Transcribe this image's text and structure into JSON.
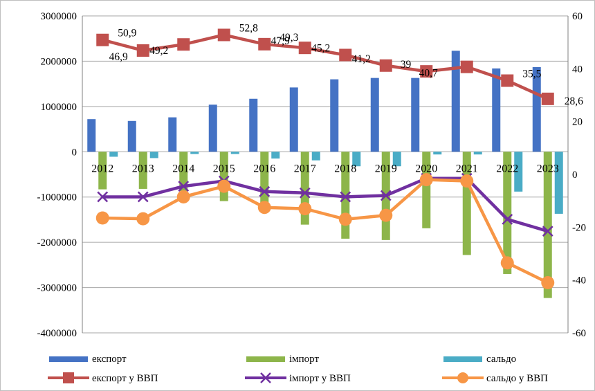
{
  "chart_data": {
    "type": "bar",
    "categories": [
      "2012",
      "2013",
      "2014",
      "2015",
      "2016",
      "2017",
      "2018",
      "2019",
      "2020",
      "2021",
      "2022",
      "2023"
    ],
    "left_axis": {
      "ylim": [
        -4000000,
        3000000
      ],
      "ticks": [
        3000000,
        2000000,
        1000000,
        0,
        -1000000,
        -2000000,
        -3000000,
        -4000000
      ],
      "tick_labels": [
        "3000000",
        "2000000",
        "1000000",
        "0",
        "-1000000",
        "-2000000",
        "-3000000",
        "-4000000"
      ]
    },
    "right_axis": {
      "ylim": [
        -60,
        60
      ],
      "ticks": [
        60,
        40,
        20,
        0,
        -20,
        -40,
        -60
      ],
      "tick_labels": [
        "60",
        "40",
        "20",
        "0",
        "-20",
        "-40",
        "-60"
      ]
    },
    "bar_series": [
      {
        "name": "експорт",
        "color": "#4472c4",
        "values": [
          720000,
          680000,
          760000,
          1040000,
          1170000,
          1420000,
          1600000,
          1630000,
          1630000,
          2230000,
          1840000,
          1870000
        ]
      },
      {
        "name": "імпорт",
        "color": "#8db54a",
        "values": [
          -830000,
          -820000,
          -870000,
          -1090000,
          -1150000,
          -1610000,
          -1920000,
          -1950000,
          -1690000,
          -2280000,
          -2700000,
          -3230000
        ]
      },
      {
        "name": "сальдо",
        "color": "#4aacc6",
        "values": [
          -110000,
          -140000,
          -50000,
          -50000,
          -150000,
          -190000,
          -320000,
          -320000,
          -60000,
          -60000,
          -880000,
          -1370000
        ]
      }
    ],
    "line_series": [
      {
        "name": "експорт у ВВП",
        "color": "#c0504d",
        "marker": "square",
        "values": [
          50.9,
          46.9,
          49.2,
          52.8,
          49.3,
          47.9,
          45.2,
          41.2,
          39,
          40.7,
          35.5,
          28.6
        ],
        "labels": [
          "50,9",
          "46,9",
          "49,2",
          "52,8",
          "49,3",
          "47,9",
          "45,2",
          "41,2",
          "39",
          "40,7",
          "35,5",
          "28,6"
        ]
      },
      {
        "name": "імпорт у ВВП",
        "color": "#7030a0",
        "marker": "x",
        "values": [
          -8.5,
          -8.5,
          -4.5,
          -2.5,
          -6.5,
          -7,
          -8.5,
          -8,
          -1.5,
          -1.5,
          -17,
          -21.5
        ]
      },
      {
        "name": "сальдо у ВВП",
        "color": "#f79646",
        "marker": "circle",
        "values": [
          -16.5,
          -16.8,
          -8.5,
          -4.5,
          -12.5,
          -13,
          -17,
          -15.5,
          -2,
          -2.5,
          -33.5,
          -41
        ]
      }
    ],
    "legend": {
      "placement": "bottom",
      "items": [
        "експорт",
        "імпорт",
        "сальдо",
        "експорт у ВВП",
        "імпорт у ВВП",
        "сальдо у ВВП"
      ]
    },
    "grid": "horizontal"
  }
}
